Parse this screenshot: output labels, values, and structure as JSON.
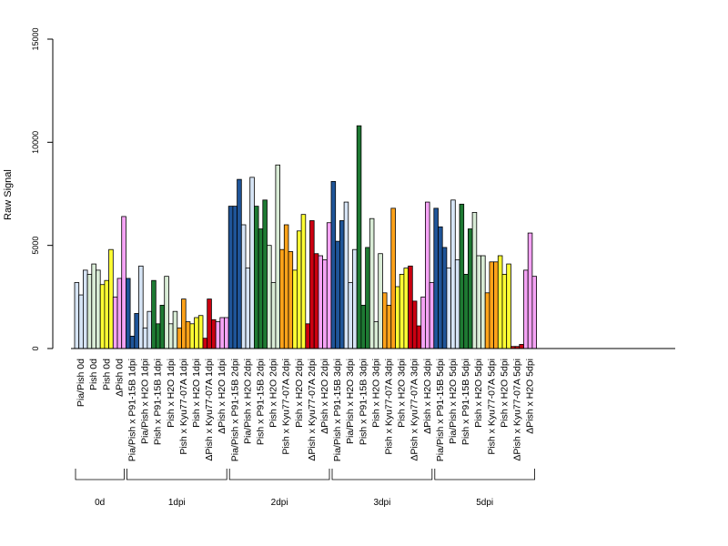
{
  "chart_data": {
    "type": "bar",
    "ylabel": "Raw Signal",
    "ylim": [
      0,
      15000
    ],
    "yticks": [
      0,
      5000,
      10000,
      15000
    ],
    "grid": false,
    "categories": [
      "Pia/Pish 0d",
      "Pish 0d",
      "Pish 0d",
      "ΔPish 0d",
      "Pia/Pish x P91-15B 1dpi",
      "Pia/Pish x H2O 1dpi",
      "Pish x P91-15B 1dpi",
      "Pish x H2O 1dpi",
      "Pish x Kyu77-07A 1dpi",
      "Pish x H2O 1dpi",
      "ΔPish x Kyu77-07A 1dpi",
      "ΔPish x H2O 1dpi",
      "Pia/Pish x P91-15B 2dpi",
      "Pia/Pish x H2O 2dpi",
      "Pish x P91-15B 2dpi",
      "Pish x H2O 2dpi",
      "Pish x Kyu77-07A 2dpi",
      "Pish x H2O 2dpi",
      "ΔPish x Kyu77-07A 2dpi",
      "ΔPish x H2O 2dpi",
      "Pia/Pish x P91-15B 3dpi",
      "Pia/Pish x H2O 3dpi",
      "Pish x P91-15B 3dpi",
      "Pish x H2O 3dpi",
      "Pish x Kyu77-07A 3dpi",
      "Pish x H2O 3dpi",
      "ΔPish x Kyu77-07A 3dpi",
      "ΔPish x H2O 3dpi",
      "Pia/Pish x P91-15B 5dpi",
      "Pia/Pish x H2O 5dpi",
      "Pish x P91-15B 5dpi",
      "Pish x H2O 5dpi",
      "Pish x Kyu77-07A 5dpi",
      "Pish x H2O 5dpi",
      "ΔPish x Kyu77-07A 5dpi",
      "ΔPish x H2O 5dpi"
    ],
    "values": [
      [
        3200,
        2600,
        3800
      ],
      [
        3600,
        4100,
        3800
      ],
      [
        3100,
        3300,
        4800
      ],
      [
        2500,
        3400,
        6400
      ],
      [
        3400,
        600,
        1700
      ],
      [
        4000,
        1000,
        1800
      ],
      [
        3300,
        1200,
        2100
      ],
      [
        3500,
        1200,
        1800
      ],
      [
        1000,
        2400,
        1300
      ],
      [
        1200,
        1500,
        1600
      ],
      [
        500,
        2400,
        1400
      ],
      [
        1300,
        1500,
        1500
      ],
      [
        6900,
        6900,
        8200
      ],
      [
        6000,
        3900,
        8300
      ],
      [
        6900,
        5800,
        7200
      ],
      [
        5000,
        3200,
        8900
      ],
      [
        4800,
        6000,
        4700
      ],
      [
        3800,
        5700,
        6500
      ],
      [
        1200,
        6200,
        4600
      ],
      [
        4500,
        4300,
        6100
      ],
      [
        8100,
        5200,
        6200
      ],
      [
        7100,
        3200,
        4800
      ],
      [
        10800,
        2100,
        4900
      ],
      [
        6300,
        1300,
        4600
      ],
      [
        2700,
        2100,
        6800
      ],
      [
        3000,
        3600,
        3900
      ],
      [
        4000,
        2300,
        1100
      ],
      [
        2500,
        7100,
        3200
      ],
      [
        6800,
        5900,
        4900
      ],
      [
        3900,
        7200,
        4300
      ],
      [
        7000,
        3600,
        5800
      ],
      [
        6600,
        4500,
        4500
      ],
      [
        2700,
        4200,
        4200
      ],
      [
        4500,
        3600,
        4100
      ],
      [
        100,
        100,
        200
      ],
      [
        3800,
        5600,
        3500
      ]
    ],
    "colors": [
      "#d6e4f5",
      "#d9ecd6",
      "#ffff33",
      "#f5a3f5",
      "#1f5599",
      "#d6e4f5",
      "#1e7a33",
      "#d9ecd6",
      "#ffa31a",
      "#ffff33",
      "#cc0011",
      "#f5a3f5",
      "#1f5599",
      "#d6e4f5",
      "#1e7a33",
      "#d9ecd6",
      "#ffa31a",
      "#ffff33",
      "#cc0011",
      "#f5a3f5",
      "#1f5599",
      "#d6e4f5",
      "#1e7a33",
      "#d9ecd6",
      "#ffa31a",
      "#ffff33",
      "#cc0011",
      "#f5a3f5",
      "#1f5599",
      "#d6e4f5",
      "#1e7a33",
      "#d9ecd6",
      "#ffa31a",
      "#ffff33",
      "#cc0011",
      "#f5a3f5"
    ],
    "groups": [
      {
        "label": "0d",
        "from": 0,
        "to": 3
      },
      {
        "label": "1dpi",
        "from": 4,
        "to": 11
      },
      {
        "label": "2dpi",
        "from": 12,
        "to": 19
      },
      {
        "label": "3dpi",
        "from": 20,
        "to": 27
      },
      {
        "label": "5dpi",
        "from": 28,
        "to": 35
      }
    ]
  }
}
